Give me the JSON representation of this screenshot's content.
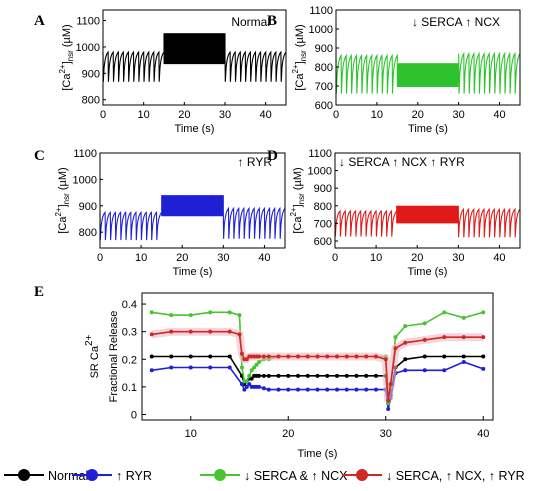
{
  "chart_data": [
    {
      "panel": "A",
      "type": "line",
      "annotation": "Normal",
      "xlabel": "Time (s)",
      "ylabel_main": "[Ca",
      "ylabel_sup": "2+",
      "ylabel_tail": "]",
      "ylabel_sub": "nsr",
      "ylabel_unit": " (µM)",
      "xlim": [
        0,
        45
      ],
      "ylim": [
        780,
        1140
      ],
      "xticks": [
        0,
        10,
        20,
        30,
        40
      ],
      "yticks": [
        800,
        900,
        1000,
        1100
      ],
      "color": "#000000",
      "series": [
        {
          "segments": [
            {
              "x": [
                0,
                15
              ],
              "period": 1.25,
              "peak": 980,
              "trough": 868
            },
            {
              "x": [
                15,
                30
              ],
              "period": 0.25,
              "peak": 1052,
              "trough": 935
            },
            {
              "x": [
                30,
                45
              ],
              "period": 1.25,
              "peak": 980,
              "trough": 868
            }
          ]
        }
      ]
    },
    {
      "panel": "B",
      "type": "line",
      "annotation": "↓ SERCA   ↑ NCX",
      "xlabel": "Time (s)",
      "ylabel_main": "[Ca",
      "ylabel_sup": "2+",
      "ylabel_tail": "]",
      "ylabel_sub": "nsr",
      "ylabel_unit": " (µM)",
      "xlim": [
        0,
        45
      ],
      "ylim": [
        600,
        1100
      ],
      "xticks": [
        0,
        10,
        20,
        30,
        40
      ],
      "yticks": [
        600,
        700,
        800,
        900,
        1000,
        1100
      ],
      "color": "#2ec32e",
      "series": [
        {
          "segments": [
            {
              "x": [
                0,
                15
              ],
              "period": 1.25,
              "peak": 860,
              "trough": 660
            },
            {
              "x": [
                15,
                30
              ],
              "period": 0.25,
              "peak": 820,
              "trough": 695
            },
            {
              "x": [
                30,
                45
              ],
              "period": 1.25,
              "peak": 870,
              "trough": 660
            }
          ]
        }
      ]
    },
    {
      "panel": "C",
      "type": "line",
      "annotation": "↑ RYR",
      "xlabel": "Time (s)",
      "ylabel_main": "[Ca",
      "ylabel_sup": "2+",
      "ylabel_tail": "]",
      "ylabel_sub": "nsr",
      "ylabel_unit": " (µM)",
      "xlim": [
        0,
        45
      ],
      "ylim": [
        740,
        1100
      ],
      "xticks": [
        0,
        10,
        20,
        30,
        40
      ],
      "yticks": [
        800,
        900,
        1000,
        1100
      ],
      "color": "#1f1fd6",
      "series": [
        {
          "segments": [
            {
              "x": [
                0,
                15
              ],
              "period": 1.25,
              "peak": 875,
              "trough": 770
            },
            {
              "x": [
                15,
                30
              ],
              "period": 0.25,
              "peak": 940,
              "trough": 860
            },
            {
              "x": [
                30,
                45
              ],
              "period": 1.25,
              "peak": 890,
              "trough": 775
            }
          ]
        }
      ]
    },
    {
      "panel": "D",
      "type": "line",
      "annotation": "↓ SERCA  ↑ NCX  ↑ RYR",
      "xlabel": "Time (s)",
      "ylabel_main": "[Ca",
      "ylabel_sup": "2+",
      "ylabel_tail": "]",
      "ylabel_sub": "nsr",
      "ylabel_unit": " (µM)",
      "xlim": [
        0,
        45
      ],
      "ylim": [
        560,
        1100
      ],
      "xticks": [
        0,
        10,
        20,
        30,
        40
      ],
      "yticks": [
        600,
        700,
        800,
        900,
        1000,
        1100
      ],
      "color": "#e01818",
      "series": [
        {
          "segments": [
            {
              "x": [
                0,
                15
              ],
              "period": 1.25,
              "peak": 770,
              "trough": 625
            },
            {
              "x": [
                15,
                30
              ],
              "period": 0.25,
              "peak": 800,
              "trough": 700
            },
            {
              "x": [
                30,
                45
              ],
              "period": 1.25,
              "peak": 780,
              "trough": 620
            }
          ]
        }
      ]
    },
    {
      "panel": "E",
      "type": "line",
      "ylabel_line1": "SR Ca",
      "ylabel_sup": "2+",
      "ylabel_line2": "Fractional Release",
      "xlabel": "Time (s)",
      "xlim": [
        5,
        41
      ],
      "ylim": [
        -0.02,
        0.44
      ],
      "xticks": [
        10,
        20,
        30,
        40
      ],
      "yticks": [
        0,
        0.1,
        0.2,
        0.3,
        0.4
      ],
      "legend_position": "bottom",
      "series": [
        {
          "name": "Normal",
          "color": "#000000",
          "x": [
            6,
            8,
            10,
            12,
            14,
            15.25,
            15.5,
            15.75,
            16,
            16.25,
            16.5,
            16.75,
            17,
            17.5,
            18,
            19,
            20,
            21,
            22,
            23,
            24,
            25,
            26,
            27,
            28,
            29,
            30,
            30.25,
            30.5,
            31,
            32,
            34,
            36,
            38,
            40
          ],
          "y": [
            0.21,
            0.21,
            0.21,
            0.21,
            0.21,
            0.14,
            0.11,
            0.12,
            0.13,
            0.13,
            0.14,
            0.14,
            0.14,
            0.14,
            0.14,
            0.14,
            0.14,
            0.14,
            0.14,
            0.14,
            0.14,
            0.14,
            0.14,
            0.14,
            0.14,
            0.14,
            0.14,
            0.04,
            0.07,
            0.17,
            0.2,
            0.21,
            0.21,
            0.21,
            0.21
          ]
        },
        {
          "name": "↑ RYR",
          "color": "#1f1fd6",
          "x": [
            6,
            8,
            10,
            12,
            14,
            15.25,
            15.5,
            15.75,
            16,
            16.25,
            16.5,
            16.75,
            17,
            17.5,
            18,
            19,
            20,
            21,
            22,
            23,
            24,
            25,
            26,
            27,
            28,
            29,
            30,
            30.25,
            30.5,
            31,
            32,
            34,
            36,
            38,
            40
          ],
          "y": [
            0.16,
            0.17,
            0.17,
            0.17,
            0.17,
            0.11,
            0.09,
            0.1,
            0.11,
            0.1,
            0.1,
            0.1,
            0.1,
            0.095,
            0.09,
            0.09,
            0.09,
            0.09,
            0.09,
            0.09,
            0.09,
            0.09,
            0.09,
            0.09,
            0.09,
            0.09,
            0.09,
            0.02,
            0.06,
            0.15,
            0.16,
            0.16,
            0.16,
            0.19,
            0.165
          ]
        },
        {
          "name": "↓ SERCA & ↑ NCX",
          "color": "#47c430",
          "x": [
            6,
            8,
            10,
            12,
            14,
            15,
            15.25,
            15.5,
            15.75,
            16,
            16.25,
            16.5,
            16.75,
            17,
            17.5,
            18,
            19,
            20,
            21,
            22,
            23,
            24,
            25,
            26,
            27,
            28,
            29,
            30,
            30.25,
            30.5,
            31,
            32,
            34,
            36,
            38,
            40
          ],
          "y": [
            0.37,
            0.36,
            0.36,
            0.37,
            0.37,
            0.36,
            0.17,
            0.12,
            0.12,
            0.14,
            0.16,
            0.17,
            0.18,
            0.19,
            0.2,
            0.2,
            0.21,
            0.21,
            0.21,
            0.21,
            0.21,
            0.21,
            0.21,
            0.21,
            0.21,
            0.21,
            0.21,
            0.21,
            0.04,
            0.1,
            0.28,
            0.32,
            0.33,
            0.37,
            0.35,
            0.37
          ]
        },
        {
          "name": "↓ SERCA, ↑ NCX, ↑ RYR",
          "color": "#cc2a22",
          "x": [
            6,
            8,
            10,
            12,
            14,
            15,
            15.25,
            15.5,
            15.75,
            16,
            16.25,
            16.5,
            16.75,
            17,
            17.5,
            18,
            19,
            20,
            21,
            22,
            23,
            24,
            25,
            26,
            27,
            28,
            29,
            30,
            30.25,
            30.5,
            31,
            32,
            34,
            36,
            38,
            40
          ],
          "y": [
            0.29,
            0.3,
            0.3,
            0.3,
            0.3,
            0.29,
            0.22,
            0.2,
            0.2,
            0.21,
            0.21,
            0.21,
            0.21,
            0.21,
            0.21,
            0.21,
            0.21,
            0.21,
            0.21,
            0.21,
            0.21,
            0.21,
            0.21,
            0.21,
            0.21,
            0.21,
            0.21,
            0.2,
            0.05,
            0.11,
            0.24,
            0.26,
            0.27,
            0.28,
            0.28,
            0.28
          ]
        }
      ]
    }
  ]
}
